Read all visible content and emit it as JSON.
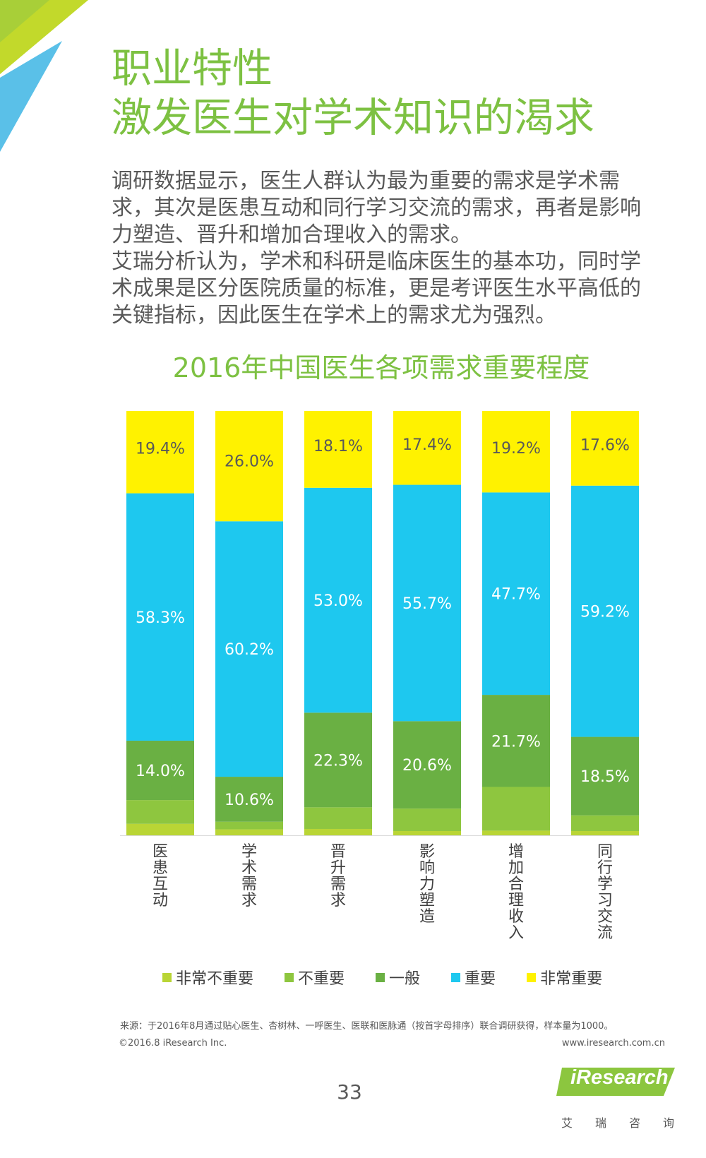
{
  "header": {
    "title_line1": "职业特性",
    "title_line2": "激发医生对学术知识的渴求"
  },
  "intro": {
    "paragraph1": "调研数据显示，医生人群认为最为重要的需求是学术需求，其次是医患互动和同行学习交流的需求，再者是影响力塑造、晋升和增加合理收入的需求。",
    "paragraph2": "艾瑞分析认为，学术和科研是临床医生的基本功，同时学术成果是区分医院质量的标准，更是考评医生水平高低的关键指标，因此医生在学术上的需求尤为强烈。"
  },
  "chart_data": {
    "type": "bar",
    "stacked": true,
    "normalized_percent": true,
    "title": "2016年中国医生各项需求重要程度",
    "categories": [
      "医患互动",
      "学术需求",
      "晋升需求",
      "影响力塑造",
      "增加合理收入",
      "同行学习交流"
    ],
    "ylim": [
      0,
      100
    ],
    "grid": false,
    "legend_position": "bottom",
    "series": [
      {
        "name": "非常不重要",
        "color": "#b9d535",
        "values": [
          2.7,
          1.4,
          1.5,
          1.0,
          1.1,
          1.0
        ],
        "labels": [
          "",
          "",
          "",
          "",
          "",
          ""
        ]
      },
      {
        "name": "不重要",
        "color": "#8ec63f",
        "values": [
          5.6,
          1.8,
          5.1,
          5.3,
          10.3,
          3.7
        ],
        "labels": [
          "",
          "",
          "",
          "",
          "",
          ""
        ]
      },
      {
        "name": "一般",
        "color": "#6ab043",
        "values": [
          14.0,
          10.6,
          22.3,
          20.6,
          21.7,
          18.5
        ],
        "labels": [
          "14.0%",
          "10.6%",
          "22.3%",
          "20.6%",
          "21.7%",
          "18.5%"
        ]
      },
      {
        "name": "重要",
        "color": "#1ec8ef",
        "values": [
          58.3,
          60.2,
          53.0,
          55.7,
          47.7,
          59.2
        ],
        "labels": [
          "58.3%",
          "60.2%",
          "53.0%",
          "55.7%",
          "47.7%",
          "59.2%"
        ]
      },
      {
        "name": "非常重要",
        "color": "#fff200",
        "values": [
          19.4,
          26.0,
          18.1,
          17.4,
          19.2,
          17.6
        ],
        "labels": [
          "19.4%",
          "26.0%",
          "18.1%",
          "17.4%",
          "19.2%",
          "17.6%"
        ]
      }
    ]
  },
  "footer": {
    "source": "来源：于2016年8月通过贴心医生、杏树林、一呼医生、医联和医脉通（按首字母排序）联合调研获得，样本量为1000。",
    "copyright": "©2016.8 iResearch Inc.",
    "website": "www.iresearch.com.cn",
    "page_number": "33",
    "brand_name": "iResearch",
    "brand_sub": [
      "艾",
      "瑞",
      "咨",
      "询"
    ]
  },
  "colors": {
    "accent_green": "#7dc142",
    "corner_light_green": "#c2d92b",
    "corner_blue": "#5ac0e8"
  }
}
